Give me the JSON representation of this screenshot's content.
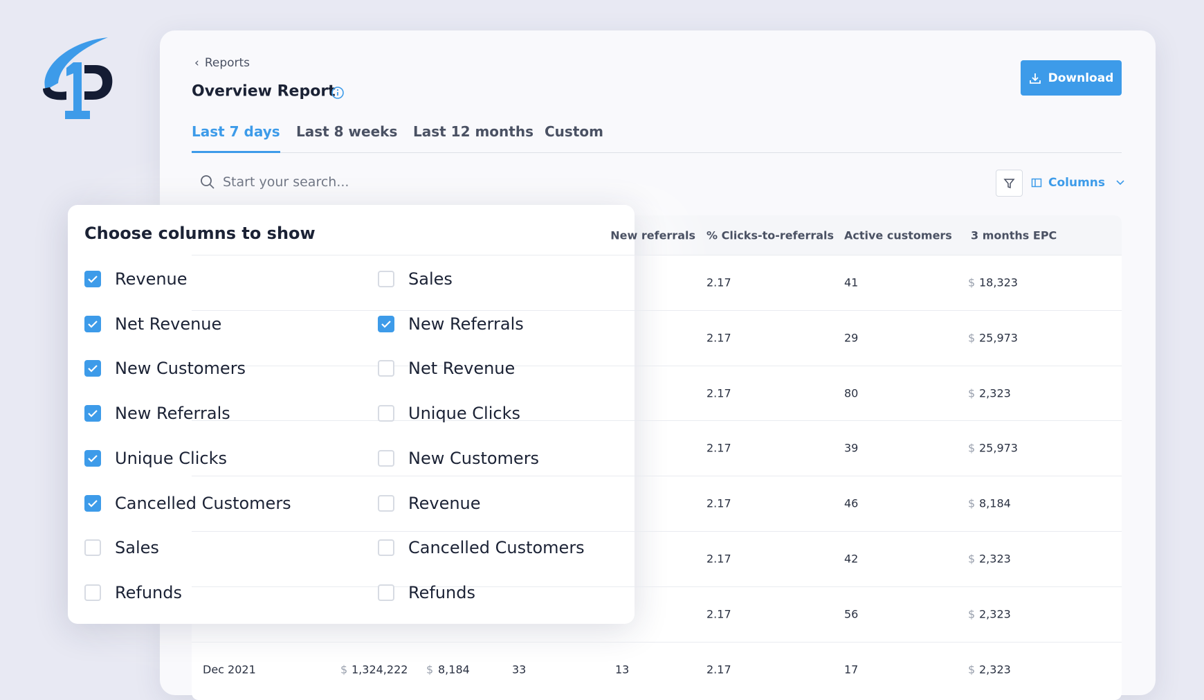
{
  "header": {
    "back_link": "Reports",
    "title": "Overview Report",
    "download": "Download"
  },
  "tabs": [
    "Last 7 days",
    "Last 8 weeks",
    "Last 12 months",
    "Custom"
  ],
  "active_tab": 0,
  "search_placeholder": "Start your search...",
  "columns_button": "Columns",
  "table": {
    "currency": "$",
    "headers": {
      "new_referrals": "New referrals",
      "clicks_to_referrals": "% Clicks-to-referrals",
      "active_customers": "Active customers",
      "epc": "3 months EPC"
    },
    "rows": [
      {
        "clicks_to_referrals": "2.17",
        "active_customers": "41",
        "epc": "18,323"
      },
      {
        "clicks_to_referrals": "2.17",
        "active_customers": "29",
        "epc": "25,973"
      },
      {
        "clicks_to_referrals": "2.17",
        "active_customers": "80",
        "epc": "2,323"
      },
      {
        "clicks_to_referrals": "2.17",
        "active_customers": "39",
        "epc": "25,973"
      },
      {
        "clicks_to_referrals": "2.17",
        "active_customers": "46",
        "epc": "8,184"
      },
      {
        "clicks_to_referrals": "2.17",
        "active_customers": "42",
        "epc": "2,323"
      },
      {
        "clicks_to_referrals": "2.17",
        "active_customers": "56",
        "epc": "2,323"
      },
      {
        "month": "Dec 2021",
        "revenue": "1,324,222",
        "net_revenue": "8,184",
        "new_customers": "33",
        "new_referrals": "13",
        "clicks_to_referrals": "2.17",
        "active_customers": "17",
        "epc": "2,323"
      }
    ]
  },
  "popup": {
    "title": "Choose columns to show",
    "left": [
      {
        "label": "Revenue",
        "checked": true
      },
      {
        "label": "Net Revenue",
        "checked": true
      },
      {
        "label": "New Customers",
        "checked": true
      },
      {
        "label": "New Referrals",
        "checked": true
      },
      {
        "label": "Unique Clicks",
        "checked": true
      },
      {
        "label": "Cancelled Customers",
        "checked": true
      },
      {
        "label": "Sales",
        "checked": false
      },
      {
        "label": "Refunds",
        "checked": false
      }
    ],
    "right": [
      {
        "label": "Sales",
        "checked": false
      },
      {
        "label": "New Referrals",
        "checked": true
      },
      {
        "label": "Net Revenue",
        "checked": false
      },
      {
        "label": "Unique Clicks",
        "checked": false
      },
      {
        "label": "New Customers",
        "checked": false
      },
      {
        "label": "Revenue",
        "checked": false
      },
      {
        "label": "Cancelled Customers",
        "checked": false
      },
      {
        "label": "Refunds",
        "checked": false
      }
    ]
  }
}
